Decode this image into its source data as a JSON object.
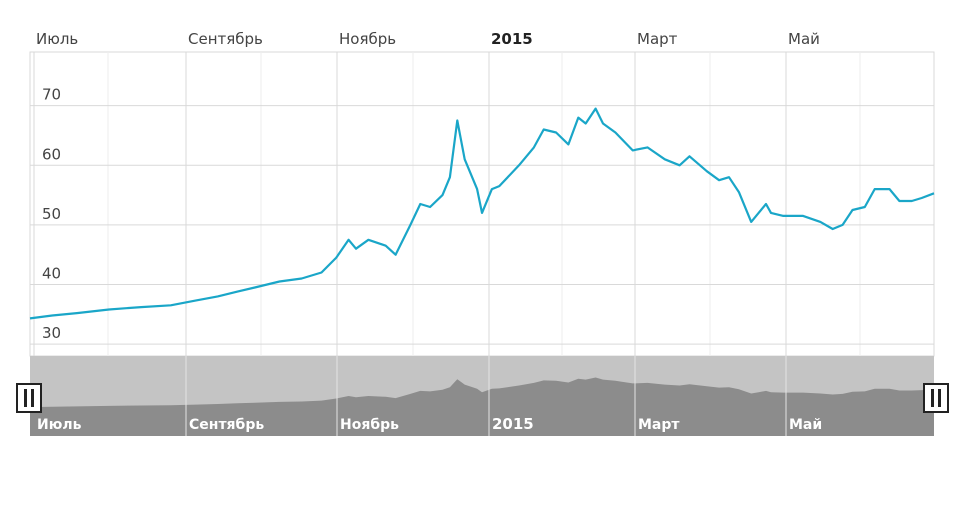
{
  "chart_data": {
    "type": "line",
    "title": "",
    "xlabel": "",
    "ylabel": "",
    "ylim": [
      28,
      79
    ],
    "y_ticks": [
      30,
      40,
      50,
      60,
      70
    ],
    "grid": true,
    "months": [
      {
        "label": "Июль",
        "bold": false
      },
      {
        "label": "Сентябрь",
        "bold": false
      },
      {
        "label": "Ноябрь",
        "bold": false
      },
      {
        "label": "2015",
        "bold": true
      },
      {
        "label": "Март",
        "bold": false
      },
      {
        "label": "Май",
        "bold": false
      }
    ],
    "x_range": [
      "2014-06-26",
      "2015-06-27"
    ],
    "series": [
      {
        "color": "#1aa6c8",
        "points": [
          [
            "2014-06-26",
            34.3
          ],
          [
            "2014-07-05",
            34.8
          ],
          [
            "2014-07-15",
            35.2
          ],
          [
            "2014-07-28",
            35.8
          ],
          [
            "2014-08-10",
            36.2
          ],
          [
            "2014-08-22",
            36.5
          ],
          [
            "2014-09-01",
            37.3
          ],
          [
            "2014-09-10",
            38.0
          ],
          [
            "2014-09-18",
            38.8
          ],
          [
            "2014-09-25",
            39.5
          ],
          [
            "2014-10-05",
            40.5
          ],
          [
            "2014-10-14",
            41.0
          ],
          [
            "2014-10-22",
            42.0
          ],
          [
            "2014-10-28",
            44.5
          ],
          [
            "2014-11-02",
            47.5
          ],
          [
            "2014-11-05",
            46.0
          ],
          [
            "2014-11-10",
            47.5
          ],
          [
            "2014-11-17",
            46.5
          ],
          [
            "2014-11-21",
            45.0
          ],
          [
            "2014-11-27",
            50.0
          ],
          [
            "2014-12-01",
            53.5
          ],
          [
            "2014-12-05",
            53.0
          ],
          [
            "2014-12-10",
            55.0
          ],
          [
            "2014-12-13",
            58.0
          ],
          [
            "2014-12-16",
            67.5
          ],
          [
            "2014-12-19",
            61.0
          ],
          [
            "2014-12-24",
            56.0
          ],
          [
            "2014-12-26",
            52.0
          ],
          [
            "2014-12-30",
            56.0
          ],
          [
            "2015-01-02",
            56.5
          ],
          [
            "2015-01-10",
            60.0
          ],
          [
            "2015-01-16",
            63.0
          ],
          [
            "2015-01-20",
            66.0
          ],
          [
            "2015-01-25",
            65.5
          ],
          [
            "2015-01-30",
            63.5
          ],
          [
            "2015-02-03",
            68.0
          ],
          [
            "2015-02-06",
            67.0
          ],
          [
            "2015-02-10",
            69.5
          ],
          [
            "2015-02-13",
            67.0
          ],
          [
            "2015-02-18",
            65.5
          ],
          [
            "2015-02-25",
            62.5
          ],
          [
            "2015-03-03",
            63.0
          ],
          [
            "2015-03-10",
            61.0
          ],
          [
            "2015-03-16",
            60.0
          ],
          [
            "2015-03-20",
            61.5
          ],
          [
            "2015-03-27",
            59.0
          ],
          [
            "2015-04-01",
            57.5
          ],
          [
            "2015-04-05",
            58.0
          ],
          [
            "2015-04-09",
            55.5
          ],
          [
            "2015-04-14",
            50.5
          ],
          [
            "2015-04-17",
            52.0
          ],
          [
            "2015-04-20",
            53.5
          ],
          [
            "2015-04-22",
            52.0
          ],
          [
            "2015-04-27",
            51.5
          ],
          [
            "2015-05-05",
            51.5
          ],
          [
            "2015-05-12",
            50.5
          ],
          [
            "2015-05-17",
            49.3
          ],
          [
            "2015-05-21",
            50.0
          ],
          [
            "2015-05-25",
            52.5
          ],
          [
            "2015-05-30",
            53.0
          ],
          [
            "2015-06-03",
            56.0
          ],
          [
            "2015-06-09",
            56.0
          ],
          [
            "2015-06-13",
            54.0
          ],
          [
            "2015-06-18",
            54.0
          ],
          [
            "2015-06-22",
            54.5
          ],
          [
            "2015-06-27",
            55.3
          ]
        ]
      }
    ]
  },
  "colors": {
    "line": "#1aa6c8",
    "grid": "#d9d9d9",
    "navigator_bg": "#c4c4c4",
    "navigator_area": "#8c8c8c"
  }
}
